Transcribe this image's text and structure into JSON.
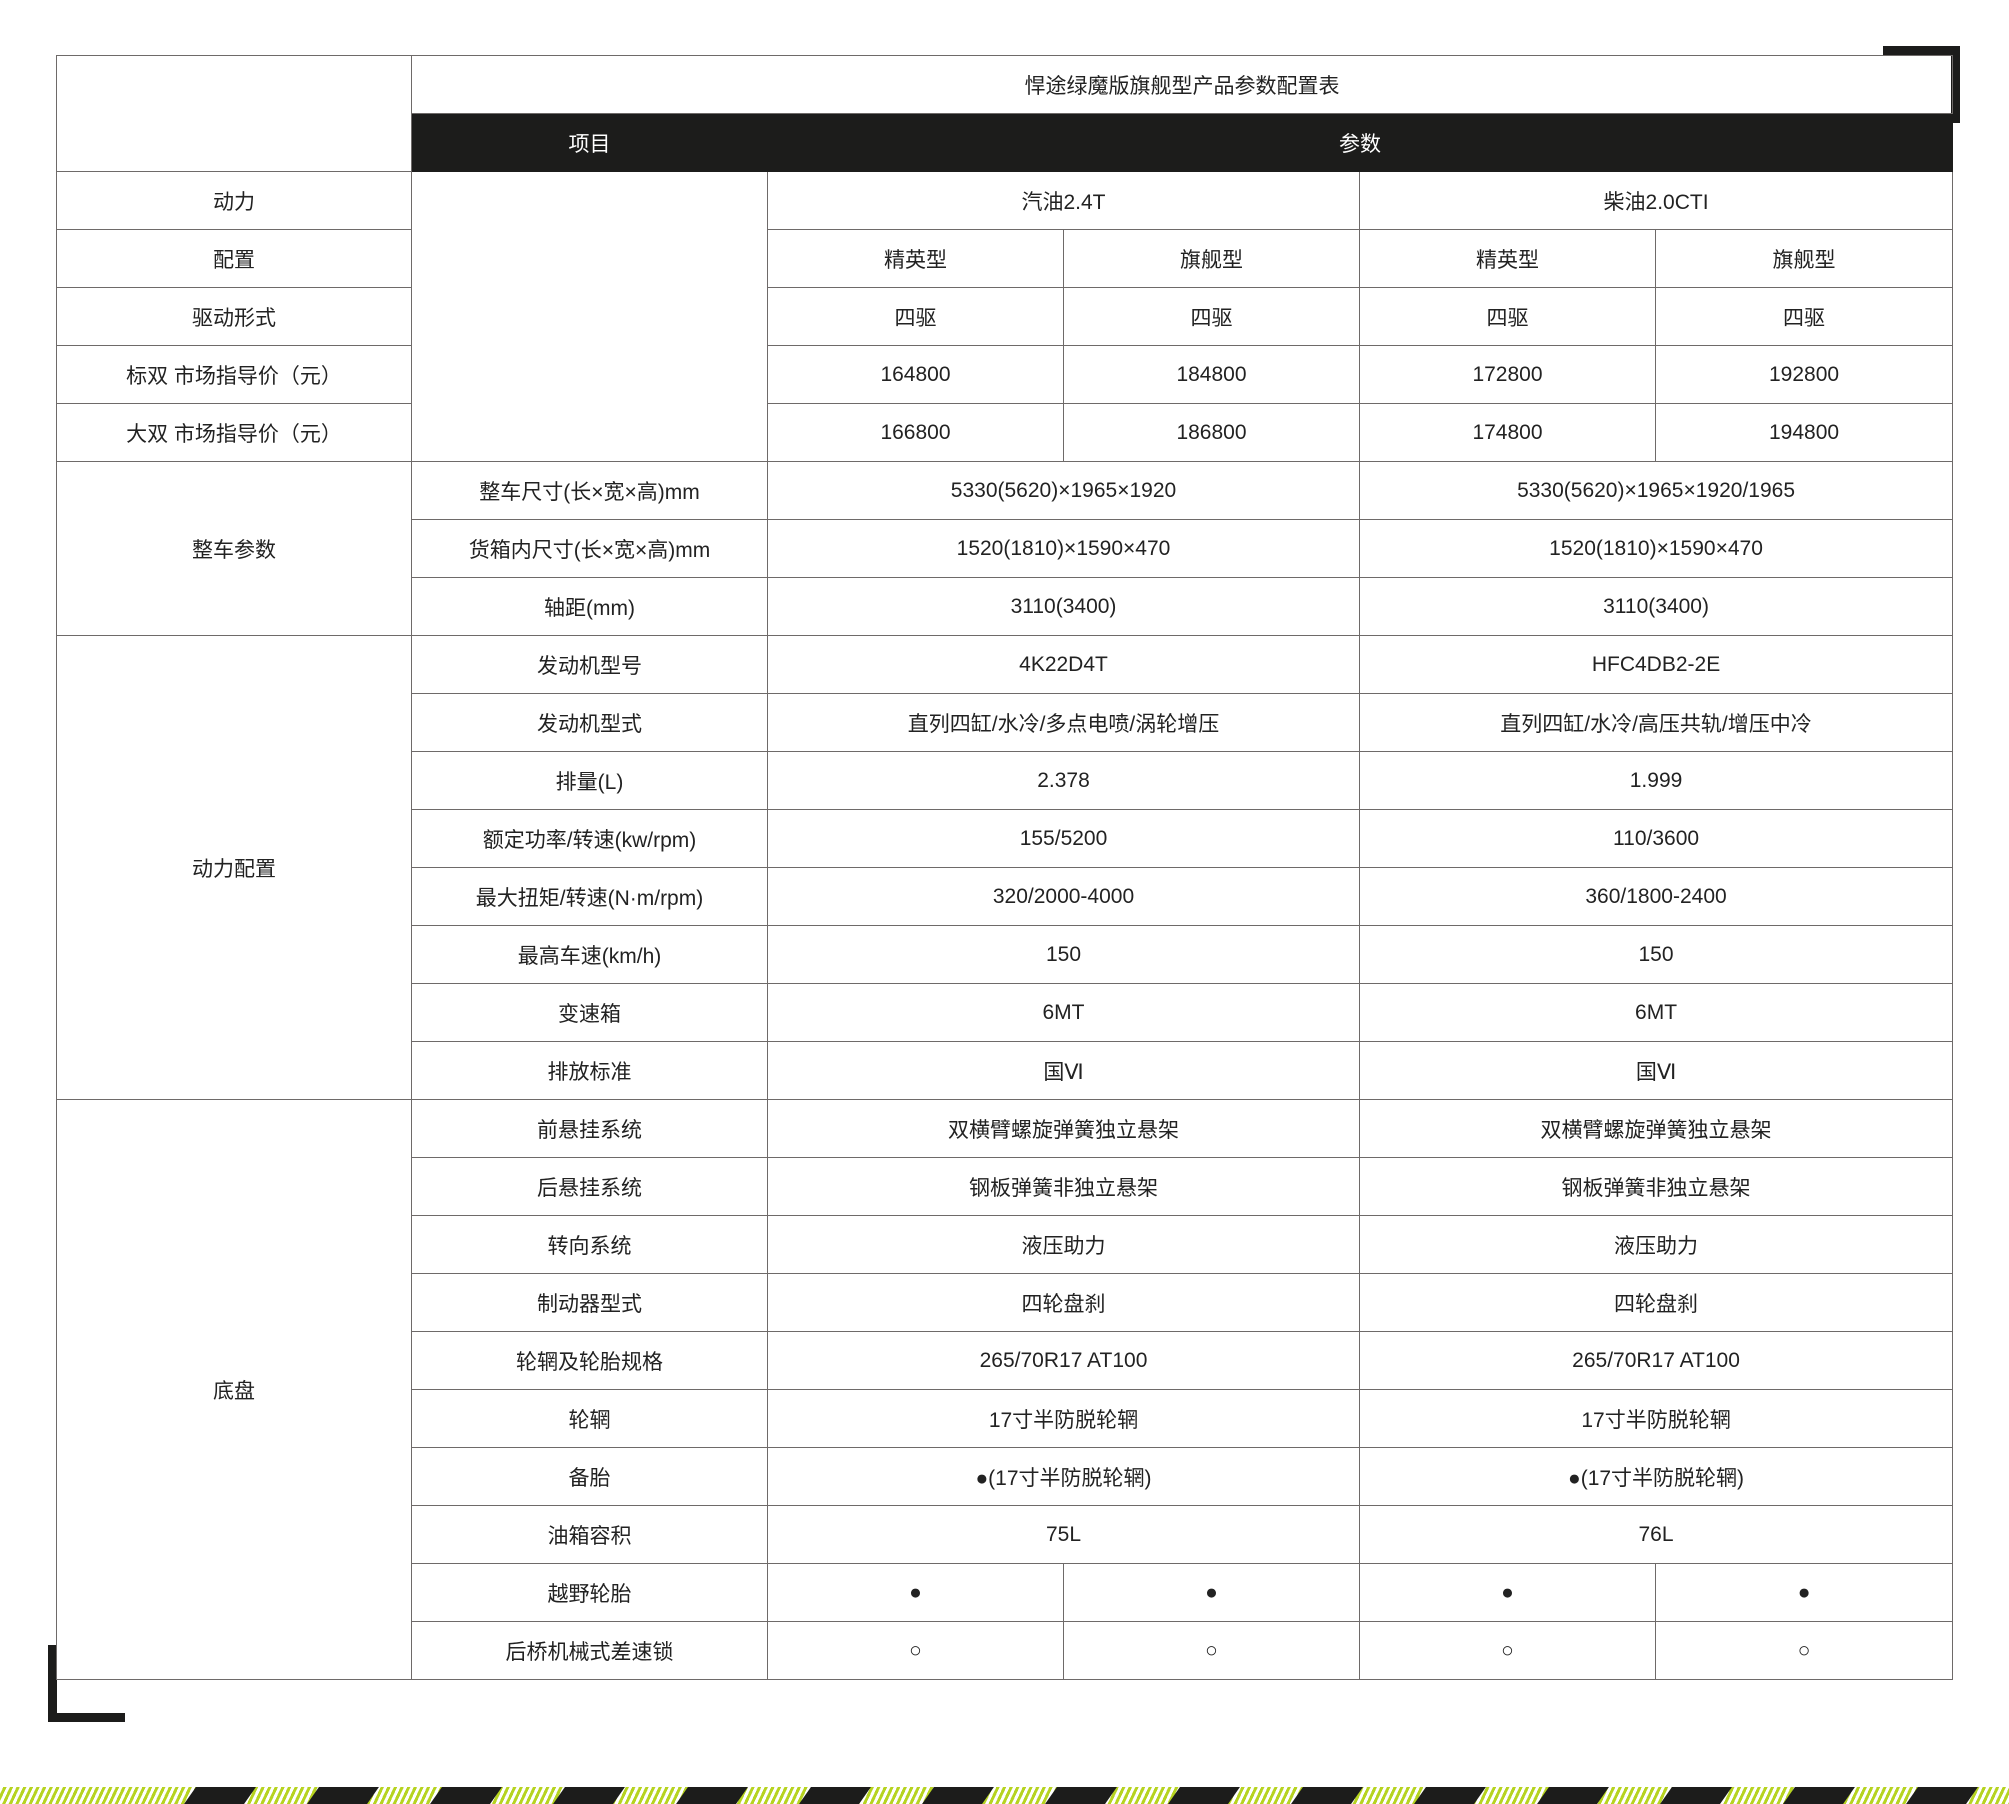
{
  "title": "悍途绿魔版旗舰型产品参数配置表",
  "header": {
    "item": "项目",
    "param": "参数"
  },
  "top_rows": [
    {
      "label": "动力",
      "cells": [
        {
          "text": "汽油2.4T",
          "span": 2
        },
        {
          "text": "柴油2.0CTI",
          "span": 2
        }
      ]
    },
    {
      "label": "配置",
      "cells": [
        {
          "text": "精英型"
        },
        {
          "text": "旗舰型"
        },
        {
          "text": "精英型"
        },
        {
          "text": "旗舰型"
        }
      ]
    },
    {
      "label": "驱动形式",
      "cells": [
        {
          "text": "四驱"
        },
        {
          "text": "四驱"
        },
        {
          "text": "四驱"
        },
        {
          "text": "四驱"
        }
      ]
    },
    {
      "label": "标双 市场指导价（元）",
      "cells": [
        {
          "text": "164800"
        },
        {
          "text": "184800"
        },
        {
          "text": "172800"
        },
        {
          "text": "192800"
        }
      ]
    },
    {
      "label": "大双 市场指导价（元）",
      "cells": [
        {
          "text": "166800"
        },
        {
          "text": "186800"
        },
        {
          "text": "174800"
        },
        {
          "text": "194800"
        }
      ]
    }
  ],
  "groups": [
    {
      "name": "整车参数",
      "rows": [
        {
          "item": "整车尺寸(长×宽×高)mm",
          "cells": [
            {
              "text": "5330(5620)×1965×1920",
              "span": 2
            },
            {
              "text": "5330(5620)×1965×1920/1965",
              "span": 2
            }
          ]
        },
        {
          "item": "货箱内尺寸(长×宽×高)mm",
          "cells": [
            {
              "text": "1520(1810)×1590×470",
              "span": 2
            },
            {
              "text": "1520(1810)×1590×470",
              "span": 2
            }
          ]
        },
        {
          "item": "轴距(mm)",
          "cells": [
            {
              "text": "3110(3400)",
              "span": 2
            },
            {
              "text": "3110(3400)",
              "span": 2
            }
          ]
        }
      ]
    },
    {
      "name": "动力配置",
      "rows": [
        {
          "item": "发动机型号",
          "cells": [
            {
              "text": "4K22D4T",
              "span": 2
            },
            {
              "text": "HFC4DB2-2E",
              "span": 2
            }
          ]
        },
        {
          "item": "发动机型式",
          "cells": [
            {
              "text": "直列四缸/水冷/多点电喷/涡轮增压",
              "span": 2
            },
            {
              "text": "直列四缸/水冷/高压共轨/增压中冷",
              "span": 2
            }
          ]
        },
        {
          "item": "排量(L)",
          "cells": [
            {
              "text": "2.378",
              "span": 2
            },
            {
              "text": "1.999",
              "span": 2
            }
          ]
        },
        {
          "item": "额定功率/转速(kw/rpm)",
          "cells": [
            {
              "text": "155/5200",
              "span": 2
            },
            {
              "text": "110/3600",
              "span": 2
            }
          ]
        },
        {
          "item": "最大扭矩/转速(N·m/rpm)",
          "cells": [
            {
              "text": "320/2000-4000",
              "span": 2
            },
            {
              "text": "360/1800-2400",
              "span": 2
            }
          ]
        },
        {
          "item": "最高车速(km/h)",
          "cells": [
            {
              "text": "150",
              "span": 2
            },
            {
              "text": "150",
              "span": 2
            }
          ]
        },
        {
          "item": "变速箱",
          "cells": [
            {
              "text": "6MT",
              "span": 2
            },
            {
              "text": "6MT",
              "span": 2
            }
          ]
        },
        {
          "item": "排放标准",
          "cells": [
            {
              "text": "国Ⅵ",
              "span": 2
            },
            {
              "text": "国Ⅵ",
              "span": 2
            }
          ]
        }
      ]
    },
    {
      "name": "底盘",
      "rows": [
        {
          "item": "前悬挂系统",
          "cells": [
            {
              "text": "双横臂螺旋弹簧独立悬架",
              "span": 2
            },
            {
              "text": "双横臂螺旋弹簧独立悬架",
              "span": 2
            }
          ]
        },
        {
          "item": "后悬挂系统",
          "cells": [
            {
              "text": "钢板弹簧非独立悬架",
              "span": 2
            },
            {
              "text": "钢板弹簧非独立悬架",
              "span": 2
            }
          ]
        },
        {
          "item": "转向系统",
          "cells": [
            {
              "text": "液压助力",
              "span": 2
            },
            {
              "text": "液压助力",
              "span": 2
            }
          ]
        },
        {
          "item": "制动器型式",
          "cells": [
            {
              "text": "四轮盘刹",
              "span": 2
            },
            {
              "text": "四轮盘刹",
              "span": 2
            }
          ]
        },
        {
          "item": "轮辋及轮胎规格",
          "cells": [
            {
              "text": "265/70R17 AT100",
              "span": 2
            },
            {
              "text": "265/70R17 AT100",
              "span": 2
            }
          ]
        },
        {
          "item": "轮辋",
          "cells": [
            {
              "text": "17寸半防脱轮辋",
              "span": 2
            },
            {
              "text": "17寸半防脱轮辋",
              "span": 2
            }
          ]
        },
        {
          "item": "备胎",
          "cells": [
            {
              "text": "●(17寸半防脱轮辋)",
              "span": 2
            },
            {
              "text": "●(17寸半防脱轮辋)",
              "span": 2
            }
          ]
        },
        {
          "item": "油箱容积",
          "cells": [
            {
              "text": "75L",
              "span": 2
            },
            {
              "text": "76L",
              "span": 2
            }
          ]
        },
        {
          "item": "越野轮胎",
          "cells": [
            {
              "text": "●"
            },
            {
              "text": "●"
            },
            {
              "text": "●"
            },
            {
              "text": "●"
            }
          ]
        },
        {
          "item": "后桥机械式差速锁",
          "cells": [
            {
              "text": "○"
            },
            {
              "text": "○"
            },
            {
              "text": "○"
            },
            {
              "text": "○"
            }
          ]
        }
      ]
    }
  ],
  "colors": {
    "header_bg": "#1c1c1b",
    "accent_green": "#b6d320",
    "border": "#6e6a69"
  }
}
